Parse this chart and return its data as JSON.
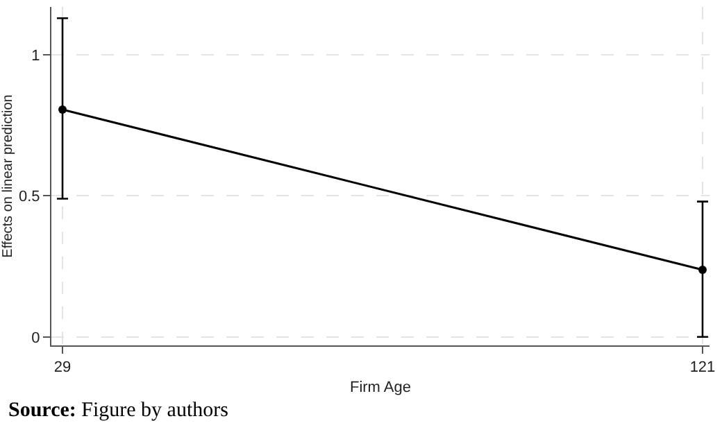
{
  "chart_data": {
    "type": "line",
    "xlabel": "Firm Age",
    "ylabel": "Effects on linear prediction",
    "x": [
      29,
      121
    ],
    "series": [
      {
        "color": "#000000",
        "values": [
          0.806,
          0.238
        ],
        "errors": [
          [
            0.49,
            1.13
          ],
          [
            0.0,
            0.48
          ]
        ]
      }
    ],
    "xlim": [
      27.4,
      122
    ],
    "xticks": [
      29,
      121
    ],
    "ylim": [
      -0.03,
      1.17
    ],
    "yticks": [
      0,
      0.5,
      1
    ],
    "grid": true,
    "marker": "circle",
    "line_style": "solid",
    "annotations": [
      "Source: Figure by authors"
    ]
  }
}
